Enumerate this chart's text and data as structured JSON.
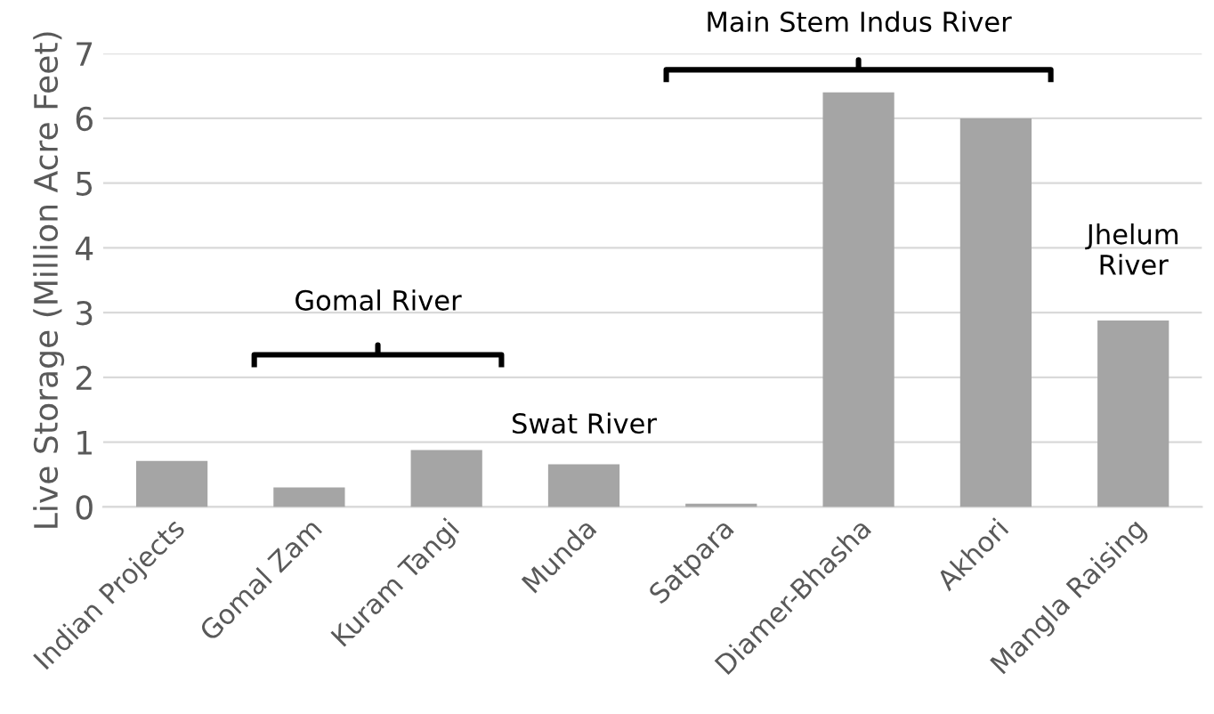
{
  "chart_data": {
    "type": "bar",
    "ylabel": "Live Storage (Million Acre Feet)",
    "categories": [
      "Indian Projects",
      "Gomal Zam",
      "Kuram Tangi",
      "Munda",
      "Satpara",
      "Diamer-Bhasha",
      "Akhori",
      "Mangla Raising"
    ],
    "values": [
      0.71,
      0.3,
      0.88,
      0.66,
      0.05,
      6.4,
      6.0,
      2.88
    ],
    "color": "#a5a5a5",
    "ylim": [
      0,
      7
    ],
    "yticks": [
      0,
      1,
      2,
      3,
      4,
      5,
      6,
      7
    ],
    "grid": "y",
    "annotations": [
      "Gomal River",
      "Swat River",
      "Main Stem Indus River",
      "Jhelum\nRiver"
    ]
  }
}
